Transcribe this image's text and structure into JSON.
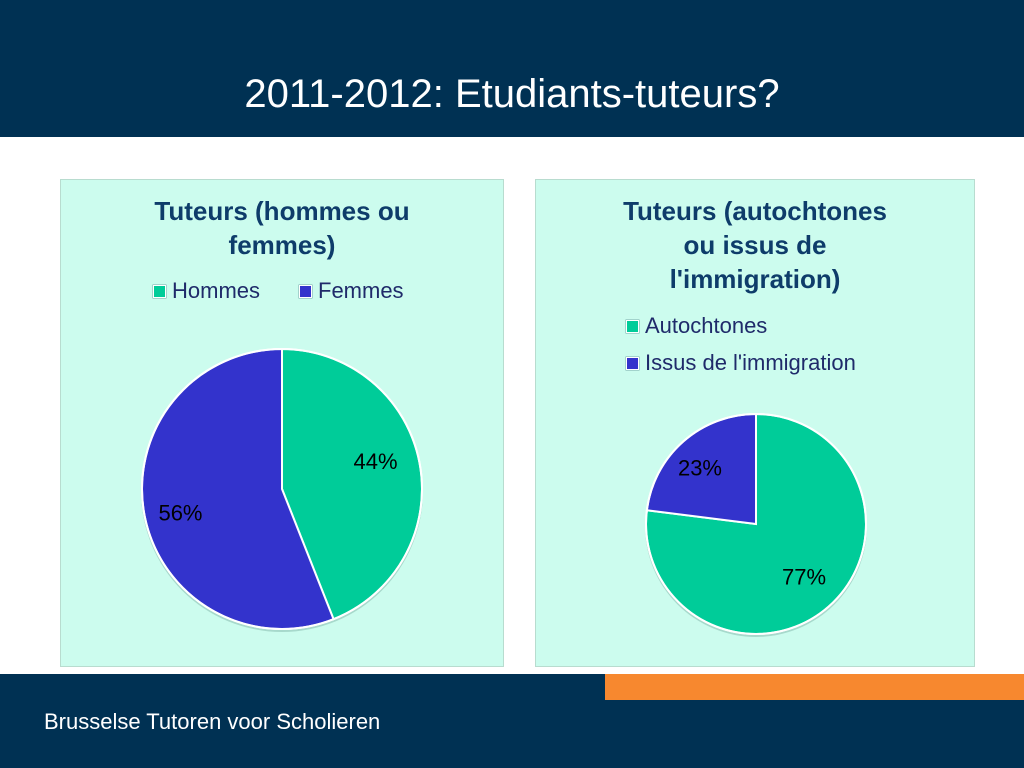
{
  "slide": {
    "title": "2011-2012: Etudiants-tuteurs?",
    "footer": "Brusselse Tutoren voor Scholieren"
  },
  "colors": {
    "header_bg": "#003153",
    "accent": "#f7882f",
    "panel_bg": "#ccfcee",
    "green": "#00cc99",
    "blue": "#3333cc"
  },
  "chart_data": [
    {
      "type": "pie",
      "title_lines": [
        "Tuteurs (hommes ou",
        "femmes)"
      ],
      "legend_position": "top",
      "slices": [
        {
          "label": "Hommes",
          "value": 44,
          "display": "44%",
          "color": "#00cc99"
        },
        {
          "label": "Femmes",
          "value": 56,
          "display": "56%",
          "color": "#3333cc"
        }
      ]
    },
    {
      "type": "pie",
      "title_lines": [
        "Tuteurs (autochtones",
        "ou issus de",
        "l'immigration)"
      ],
      "legend_position": "top",
      "slices": [
        {
          "label": "Autochtones",
          "value": 77,
          "display": "77%",
          "color": "#00cc99"
        },
        {
          "label": "Issus de l'immigration",
          "value": 23,
          "display": "23%",
          "color": "#3333cc"
        }
      ]
    }
  ]
}
